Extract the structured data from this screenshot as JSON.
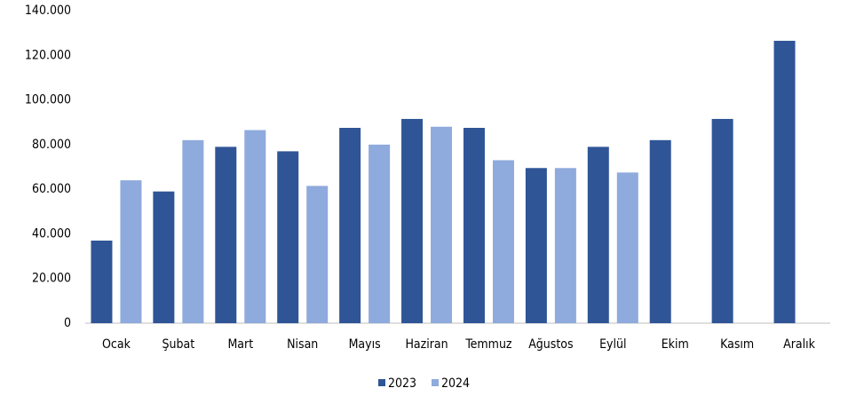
{
  "chart_data": {
    "type": "bar",
    "categories": [
      "Ocak",
      "Şubat",
      "Mart",
      "Nisan",
      "Mayıs",
      "Haziran",
      "Temmuz",
      "Ağustos",
      "Eylül",
      "Ekim",
      "Kasım",
      "Aralık"
    ],
    "series": [
      {
        "name": "2023",
        "color": "#2f5597",
        "values": [
          37000,
          59000,
          79000,
          77000,
          87500,
          91500,
          87500,
          69500,
          79000,
          82000,
          91500,
          126500
        ]
      },
      {
        "name": "2024",
        "color": "#8faadc",
        "values": [
          64000,
          82000,
          86500,
          61500,
          80000,
          88000,
          73000,
          69500,
          67500,
          null,
          null,
          null
        ]
      }
    ],
    "ylim": [
      0,
      140000
    ],
    "yticks": [
      0,
      {
        "value": 20000,
        "label": "20.000"
      },
      {
        "value": 40000,
        "label": "40.000"
      },
      {
        "value": 60000,
        "label": "60.000"
      },
      {
        "value": 80000,
        "label": "80.000"
      },
      {
        "value": 100000,
        "label": "100.000"
      },
      {
        "value": 120000,
        "label": "120.000"
      },
      {
        "value": 140000,
        "label": "140.000"
      }
    ],
    "grid": false,
    "legend": "bottom"
  }
}
